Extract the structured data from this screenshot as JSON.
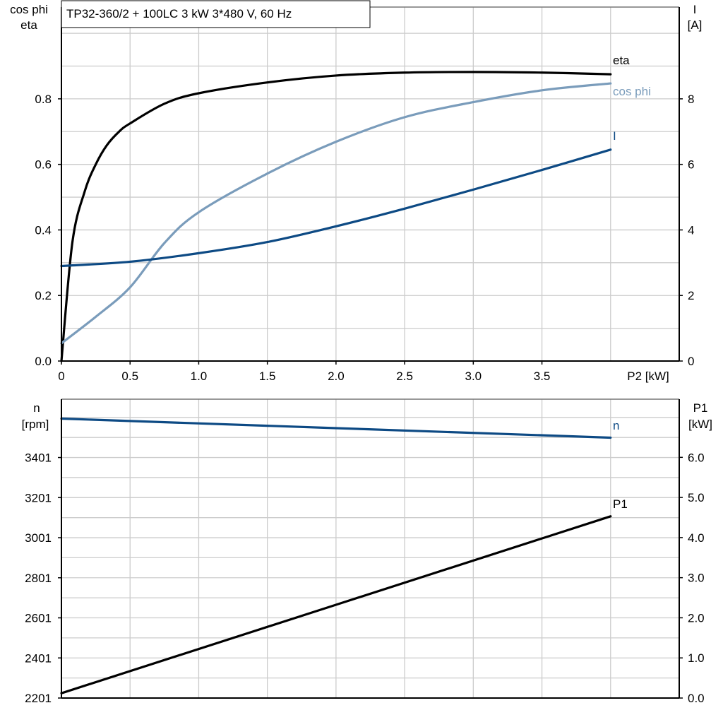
{
  "title": "TP32-360/2 + 100LC   3 kW   3*480 V, 60 Hz",
  "colors": {
    "eta": "#000000",
    "cos_phi": "#7a9cbb",
    "I": "#0d4a84",
    "n": "#0d4a84",
    "P1": "#000000",
    "grid": "#cccccc"
  },
  "chart_data": [
    {
      "type": "line",
      "grid": true,
      "xlabel": "P2 [kW]",
      "ylabel_left": [
        "cos phi",
        "eta"
      ],
      "ylabel_right": [
        "I",
        "[A]"
      ],
      "xlim": [
        0,
        4.5
      ],
      "ylim_left": [
        0,
        1.08
      ],
      "ylim_right": [
        0,
        10.8
      ],
      "x_ticks": [
        "0",
        "0.5",
        "1.0",
        "1.5",
        "2.0",
        "2.5",
        "3.0",
        "3.5"
      ],
      "y_ticks_left": [
        "0.0",
        "0.2",
        "0.4",
        "0.6",
        "0.8"
      ],
      "y_ticks_right": [
        "0",
        "2",
        "4",
        "6",
        "8"
      ],
      "series": [
        {
          "name": "eta",
          "axis": "left",
          "x": [
            0,
            0.08,
            0.17,
            0.25,
            0.33,
            0.42,
            0.5,
            0.75,
            1.0,
            1.5,
            2.0,
            2.5,
            3.0,
            3.5,
            4.0
          ],
          "y": [
            0,
            0.363,
            0.518,
            0.6,
            0.658,
            0.7,
            0.725,
            0.785,
            0.817,
            0.85,
            0.871,
            0.88,
            0.882,
            0.88,
            0.875
          ]
        },
        {
          "name": "cos phi",
          "axis": "left",
          "x": [
            0,
            0.25,
            0.5,
            0.75,
            1.0,
            1.5,
            2.0,
            2.5,
            3.0,
            3.5,
            4.0
          ],
          "y": [
            0.054,
            0.135,
            0.225,
            0.36,
            0.454,
            0.572,
            0.669,
            0.744,
            0.79,
            0.826,
            0.847
          ]
        },
        {
          "name": "I",
          "axis": "right",
          "x": [
            0,
            0.5,
            1.0,
            1.5,
            2.0,
            2.5,
            3.0,
            3.5,
            4.0
          ],
          "y": [
            2.9,
            3.03,
            3.29,
            3.63,
            4.11,
            4.65,
            5.23,
            5.83,
            6.45
          ]
        }
      ]
    },
    {
      "type": "line",
      "grid": true,
      "ylabel_left": [
        "n",
        "[rpm]"
      ],
      "ylabel_right": [
        "P1",
        "[kW]"
      ],
      "xlim": [
        0,
        4.5
      ],
      "ylim_left": [
        2201,
        3692
      ],
      "ylim_right": [
        0,
        7.45
      ],
      "y_ticks_left": [
        "2201",
        "2401",
        "2601",
        "2801",
        "3001",
        "3201",
        "3401"
      ],
      "y_ticks_right": [
        "0.0",
        "1.0",
        "2.0",
        "3.0",
        "4.0",
        "5.0",
        "6.0"
      ],
      "series": [
        {
          "name": "n",
          "axis": "left",
          "x": [
            0,
            4.0
          ],
          "y": [
            3595,
            3500
          ]
        },
        {
          "name": "P1",
          "axis": "right",
          "x": [
            0,
            4.0
          ],
          "y": [
            0.12,
            4.53
          ]
        }
      ]
    }
  ]
}
